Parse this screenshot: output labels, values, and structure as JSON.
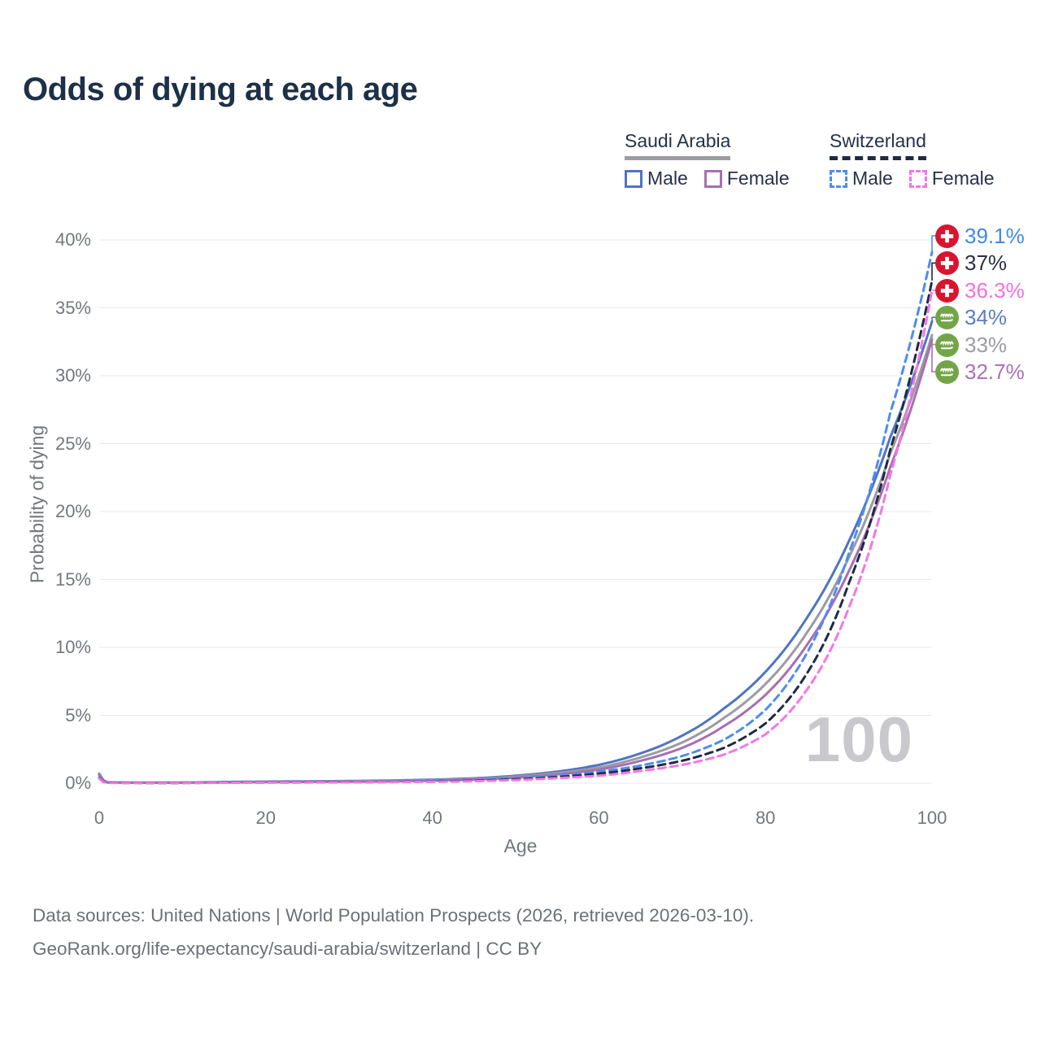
{
  "title": "Odds of dying at each age",
  "legend": {
    "groups": [
      {
        "country": "Saudi Arabia",
        "line_style": "solid",
        "items": [
          {
            "label": "Male"
          },
          {
            "label": "Female"
          }
        ]
      },
      {
        "country": "Switzerland",
        "line_style": "dashed",
        "items": [
          {
            "label": "Male"
          },
          {
            "label": "Female"
          }
        ]
      }
    ]
  },
  "axes": {
    "x": {
      "label": "Age",
      "ticks": [
        0,
        20,
        40,
        60,
        80,
        100
      ]
    },
    "y": {
      "label": "Probability of dying",
      "ticks": [
        0,
        5,
        10,
        15,
        20,
        25,
        30,
        35,
        40
      ],
      "unit": "%"
    }
  },
  "watermark": "100",
  "footer": {
    "line1": "Data sources: United Nations | World Population Prospects (2026, retrieved 2026-03-10).",
    "line2": "GeoRank.org/life-expectancy/saudi-arabia/switzerland | CC BY"
  },
  "palette": {
    "title_color": "#1d3048",
    "axis_text_color": "#73777e",
    "grid_color": "#e9e9ed",
    "watermark_color": "#c9c9cd",
    "footer_color": "#6c7077",
    "swiss_flag_red": "#d9142f",
    "saudi_flag_green": "#73a548"
  },
  "chart_data": {
    "type": "line",
    "title": "Odds of dying at each age",
    "xlabel": "Age",
    "ylabel": "Probability of dying",
    "xlim": [
      0,
      100
    ],
    "ylim": [
      0,
      40
    ],
    "x_ticks": [
      0,
      20,
      40,
      60,
      80,
      100
    ],
    "y_ticks": [
      0,
      5,
      10,
      15,
      20,
      25,
      30,
      35,
      40
    ],
    "grid": true,
    "ages": [
      0,
      1,
      5,
      10,
      15,
      20,
      25,
      30,
      35,
      40,
      45,
      50,
      55,
      60,
      65,
      70,
      75,
      80,
      85,
      90,
      95,
      100
    ],
    "series": [
      {
        "key": "saudi_male",
        "name": "Saudi Arabia Male",
        "country": "Saudi Arabia",
        "sex": "Male",
        "color": "#4f74c2",
        "label_color": "#5b7dc7",
        "dash": "solid",
        "flag": "saudi",
        "end_value": 34.0,
        "end_label": "34%",
        "values": [
          0.7,
          0.07,
          0.04,
          0.05,
          0.09,
          0.12,
          0.14,
          0.16,
          0.2,
          0.26,
          0.36,
          0.55,
          0.85,
          1.35,
          2.2,
          3.5,
          5.5,
          8.2,
          12.2,
          17.8,
          25.5,
          34.0
        ]
      },
      {
        "key": "saudi_all",
        "name": "Saudi Arabia Both sexes",
        "country": "Saudi Arabia",
        "sex": "Both",
        "color": "#9b9ba1",
        "label_color": "#9b9ba1",
        "dash": "solid",
        "flag": "saudi",
        "end_value": 33.0,
        "end_label": "33%",
        "values": [
          0.65,
          0.06,
          0.04,
          0.04,
          0.07,
          0.1,
          0.12,
          0.14,
          0.17,
          0.22,
          0.31,
          0.48,
          0.75,
          1.15,
          1.9,
          3.0,
          4.8,
          7.3,
          11.1,
          16.6,
          24.3,
          33.0
        ]
      },
      {
        "key": "saudi_female",
        "name": "Saudi Arabia Female",
        "country": "Saudi Arabia",
        "sex": "Female",
        "color": "#a86fb0",
        "label_color": "#a874b2",
        "dash": "solid",
        "flag": "saudi",
        "end_value": 32.7,
        "end_label": "32.7%",
        "values": [
          0.6,
          0.05,
          0.03,
          0.04,
          0.05,
          0.07,
          0.09,
          0.11,
          0.14,
          0.19,
          0.27,
          0.42,
          0.65,
          1.0,
          1.65,
          2.6,
          4.2,
          6.5,
          10.2,
          15.6,
          23.3,
          32.7
        ]
      },
      {
        "key": "swiss_male",
        "name": "Switzerland Male",
        "country": "Switzerland",
        "sex": "Male",
        "color": "#4e8cf0",
        "label_color": "#3f8be0",
        "dash": "dashed",
        "flag": "swiss",
        "end_value": 39.1,
        "end_label": "39.1%",
        "values": [
          0.4,
          0.03,
          0.02,
          0.02,
          0.05,
          0.07,
          0.08,
          0.09,
          0.11,
          0.15,
          0.22,
          0.35,
          0.55,
          0.85,
          1.3,
          2.0,
          3.2,
          5.4,
          9.6,
          16.9,
          27.3,
          39.1
        ]
      },
      {
        "key": "swiss_all",
        "name": "Switzerland Both sexes",
        "country": "Switzerland",
        "sex": "Both",
        "color": "#1e2b42",
        "label_color": "#2a3142",
        "dash": "dashed",
        "flag": "swiss",
        "end_value": 37.0,
        "end_label": "37%",
        "values": [
          0.37,
          0.03,
          0.02,
          0.02,
          0.04,
          0.05,
          0.06,
          0.07,
          0.09,
          0.12,
          0.18,
          0.28,
          0.45,
          0.7,
          1.1,
          1.65,
          2.6,
          4.4,
          8.1,
          14.7,
          24.6,
          37.0
        ]
      },
      {
        "key": "swiss_female",
        "name": "Switzerland Female",
        "country": "Switzerland",
        "sex": "Female",
        "color": "#f675e6",
        "label_color": "#f470df",
        "dash": "dashed",
        "flag": "swiss",
        "end_value": 36.3,
        "end_label": "36.3%",
        "values": [
          0.35,
          0.02,
          0.02,
          0.02,
          0.03,
          0.04,
          0.05,
          0.06,
          0.08,
          0.1,
          0.15,
          0.23,
          0.37,
          0.55,
          0.9,
          1.35,
          2.1,
          3.6,
          6.9,
          12.9,
          22.7,
          36.3
        ]
      }
    ]
  }
}
